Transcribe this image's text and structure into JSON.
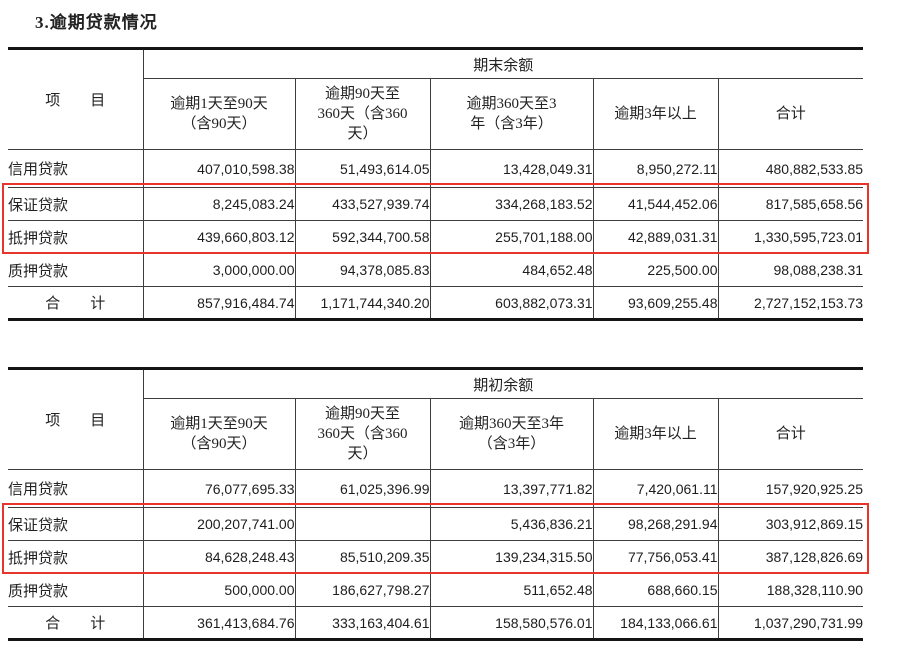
{
  "page": {
    "title": "3.逾期贷款情况"
  },
  "colors": {
    "highlight_border": "#e8352b",
    "table_border_thick": "#141414",
    "table_border_thin": "#3d3d3d"
  },
  "tables": [
    {
      "period_header": "期末余额",
      "item_header": "项　　目",
      "columns": [
        "逾期1天至90天\n（含90天）",
        "逾期90天至\n360天（含360\n天）",
        "逾期360天至3\n年（含3年）",
        "逾期3年以上",
        "合计"
      ],
      "rows": [
        {
          "label": "信用贷款",
          "values": [
            "407,010,598.38",
            "51,493,614.05",
            "13,428,049.31",
            "8,950,272.11",
            "480,882,533.85"
          ]
        },
        {
          "label": "保证贷款",
          "values": [
            "8,245,083.24",
            "433,527,939.74",
            "334,268,183.52",
            "41,544,452.06",
            "817,585,658.56"
          ]
        },
        {
          "label": "抵押贷款",
          "values": [
            "439,660,803.12",
            "592,344,700.58",
            "255,701,188.00",
            "42,889,031.31",
            "1,330,595,723.01"
          ]
        },
        {
          "label": "质押贷款",
          "values": [
            "3,000,000.00",
            "94,378,085.83",
            "484,652.48",
            "225,500.00",
            "98,088,238.31"
          ]
        },
        {
          "label": "合　　计",
          "values": [
            "857,916,484.74",
            "1,171,744,340.20",
            "603,882,073.31",
            "93,609,255.48",
            "2,727,152,153.73"
          ]
        }
      ],
      "highlighted_row_labels": [
        "保证贷款",
        "抵押贷款"
      ]
    },
    {
      "period_header": "期初余额",
      "item_header": "项　　目",
      "columns": [
        "逾期1天至90天\n（含90天）",
        "逾期90天至\n360天（含360\n天）",
        "逾期360天至3年\n（含3年）",
        "逾期3年以上",
        "合计"
      ],
      "rows": [
        {
          "label": "信用贷款",
          "values": [
            "76,077,695.33",
            "61,025,396.99",
            "13,397,771.82",
            "7,420,061.11",
            "157,920,925.25"
          ]
        },
        {
          "label": "保证贷款",
          "values": [
            "200,207,741.00",
            "",
            "5,436,836.21",
            "98,268,291.94",
            "303,912,869.15"
          ]
        },
        {
          "label": "抵押贷款",
          "values": [
            "84,628,248.43",
            "85,510,209.35",
            "139,234,315.50",
            "77,756,053.41",
            "387,128,826.69"
          ]
        },
        {
          "label": "质押贷款",
          "values": [
            "500,000.00",
            "186,627,798.27",
            "511,652.48",
            "688,660.15",
            "188,328,110.90"
          ]
        },
        {
          "label": "合　　计",
          "values": [
            "361,413,684.76",
            "333,163,404.61",
            "158,580,576.01",
            "184,133,066.61",
            "1,037,290,731.99"
          ]
        }
      ],
      "highlighted_row_labels": [
        "保证贷款",
        "抵押贷款"
      ]
    }
  ]
}
